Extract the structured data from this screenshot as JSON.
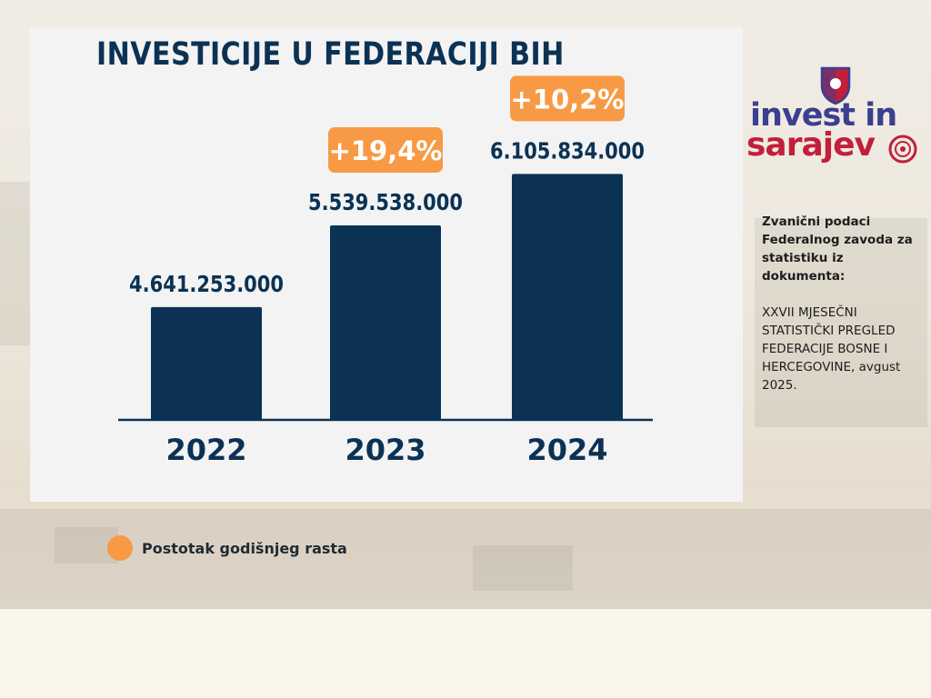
{
  "chart_data": {
    "type": "bar",
    "title": "INVESTICIJE U FEDERACIJI BIH",
    "categories": [
      "2022",
      "2023",
      "2024"
    ],
    "values": [
      4641253000,
      5539538000,
      6105834000
    ],
    "value_labels": [
      "4.641.253.000",
      "5.539.538.000",
      "6.105.834.000"
    ],
    "growth_labels": [
      "",
      "+19,4%",
      "+10,2%"
    ],
    "xlabel": "",
    "ylabel": "",
    "grid": false,
    "bar_color": "#0b3254",
    "growth_color": "#f89a45",
    "legend": {
      "placement": "bottom-left",
      "label": "Postotak godišnjeg rasta"
    }
  },
  "logo": {
    "line1": "invest in",
    "line2": "sarajev"
  },
  "source": {
    "heading": "Zvanični podaci Federalnog zavoda za statistiku iz dokumenta:",
    "document": "XXVII MJESEČNI STATISTIČKI PREGLED FEDERACIJE BOSNE I HERCEGOVINE, avgust 2025."
  },
  "colors": {
    "title": "#0b3254",
    "logo_blue": "#3a3f8f",
    "logo_red": "#c21f3a"
  }
}
